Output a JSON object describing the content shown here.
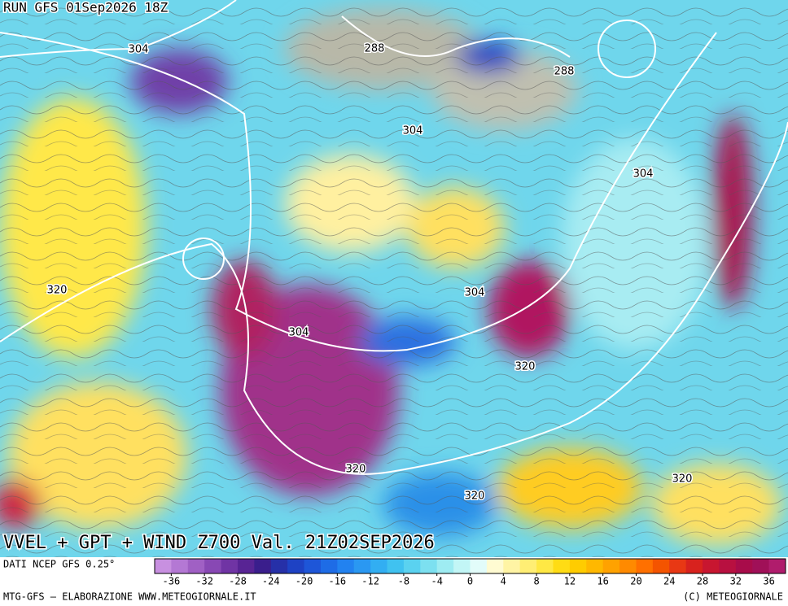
{
  "header": {
    "run": "RUN GFS 01Sep2026 18Z"
  },
  "map": {
    "title": "VVEL + GPT + WIND Z700 Val. 21Z02SEP2026",
    "contour_labels": [
      304,
      288,
      288,
      304,
      304,
      320,
      304,
      304,
      320,
      320,
      320,
      320
    ]
  },
  "colorbar": {
    "source": "DATI NCEP GFS 0.25°",
    "lim": [
      -38,
      38
    ],
    "ticks": [
      -36,
      -32,
      -28,
      -24,
      -20,
      -16,
      -12,
      -8,
      -4,
      0,
      4,
      8,
      12,
      16,
      20,
      24,
      28,
      32,
      36
    ],
    "colors": [
      "#c890e0",
      "#b478d4",
      "#a060c4",
      "#8848b4",
      "#7034a4",
      "#582494",
      "#3a1e8c",
      "#2630a8",
      "#1e42c4",
      "#1e56d8",
      "#1e6ce6",
      "#2282f0",
      "#2a98f2",
      "#32aef2",
      "#40c2f0",
      "#5ad2f0",
      "#7ce0f0",
      "#9eecf2",
      "#c2f6f6",
      "#e2fcfa",
      "#fffbd2",
      "#fff4a4",
      "#ffee74",
      "#ffe844",
      "#ffdc14",
      "#ffcc00",
      "#ffb800",
      "#ffa200",
      "#ff8a00",
      "#ff7000",
      "#f45400",
      "#e83814",
      "#d8221e",
      "#c81630",
      "#b81040",
      "#a80c4a",
      "#a01058",
      "#b01c6c"
    ]
  },
  "footer": {
    "left": "MTG-GFS — ELABORAZIONE WWW.METEOGIORNALE.IT",
    "right": "(C) METEOGIORNALE"
  }
}
